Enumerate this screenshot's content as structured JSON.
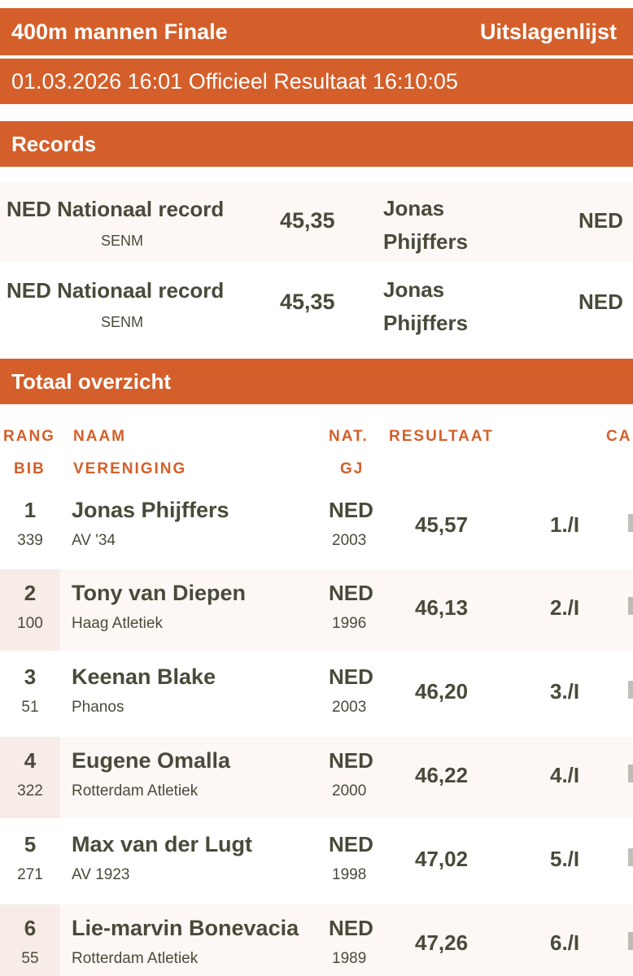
{
  "header": {
    "event_title": "400m mannen Finale",
    "list_type": "Uitslagenlijst",
    "subtitle": "01.03.2026 16:01 Officieel Resultaat 16:10:05"
  },
  "records": {
    "title": "Records",
    "rows": [
      {
        "name": "NED Nationaal record",
        "category": "SENM",
        "result": "45,35",
        "athlete": "Jonas Phijffers",
        "nat": "NED"
      },
      {
        "name": "NED Nationaal record",
        "category": "SENM",
        "result": "45,35",
        "athlete": "Jonas Phijffers",
        "nat": "NED"
      }
    ]
  },
  "overview": {
    "title": "Totaal overzicht",
    "columns": {
      "rank": "RANG",
      "bib": "BIB",
      "name": "NAAM",
      "club": "VERENIGING",
      "nat": "NAT.",
      "year": "GJ",
      "result": "RESULTAAT",
      "cat": "CA"
    },
    "rows": [
      {
        "rank": "1",
        "bib": "339",
        "name": "Jonas Phijffers",
        "club": "AV '34",
        "nat": "NED",
        "year": "2003",
        "result": "45,57",
        "place": "1./I"
      },
      {
        "rank": "2",
        "bib": "100",
        "name": "Tony van Diepen",
        "club": "Haag Atletiek",
        "nat": "NED",
        "year": "1996",
        "result": "46,13",
        "place": "2./I"
      },
      {
        "rank": "3",
        "bib": "51",
        "name": "Keenan Blake",
        "club": "Phanos",
        "nat": "NED",
        "year": "2003",
        "result": "46,20",
        "place": "3./I"
      },
      {
        "rank": "4",
        "bib": "322",
        "name": "Eugene Omalla",
        "club": "Rotterdam Atletiek",
        "nat": "NED",
        "year": "2000",
        "result": "46,22",
        "place": "4./I"
      },
      {
        "rank": "5",
        "bib": "271",
        "name": "Max van der Lugt",
        "club": "AV 1923",
        "nat": "NED",
        "year": "1998",
        "result": "47,02",
        "place": "5./I"
      },
      {
        "rank": "6",
        "bib": "55",
        "name": "Lie-marvin Bonevacia",
        "club": "Rotterdam Atletiek",
        "nat": "NED",
        "year": "1989",
        "result": "47,26",
        "place": "6./I"
      }
    ]
  },
  "colors": {
    "accent": "#d45f2a",
    "text": "#4a4a3a",
    "row_alt": "#fdf8f5"
  }
}
